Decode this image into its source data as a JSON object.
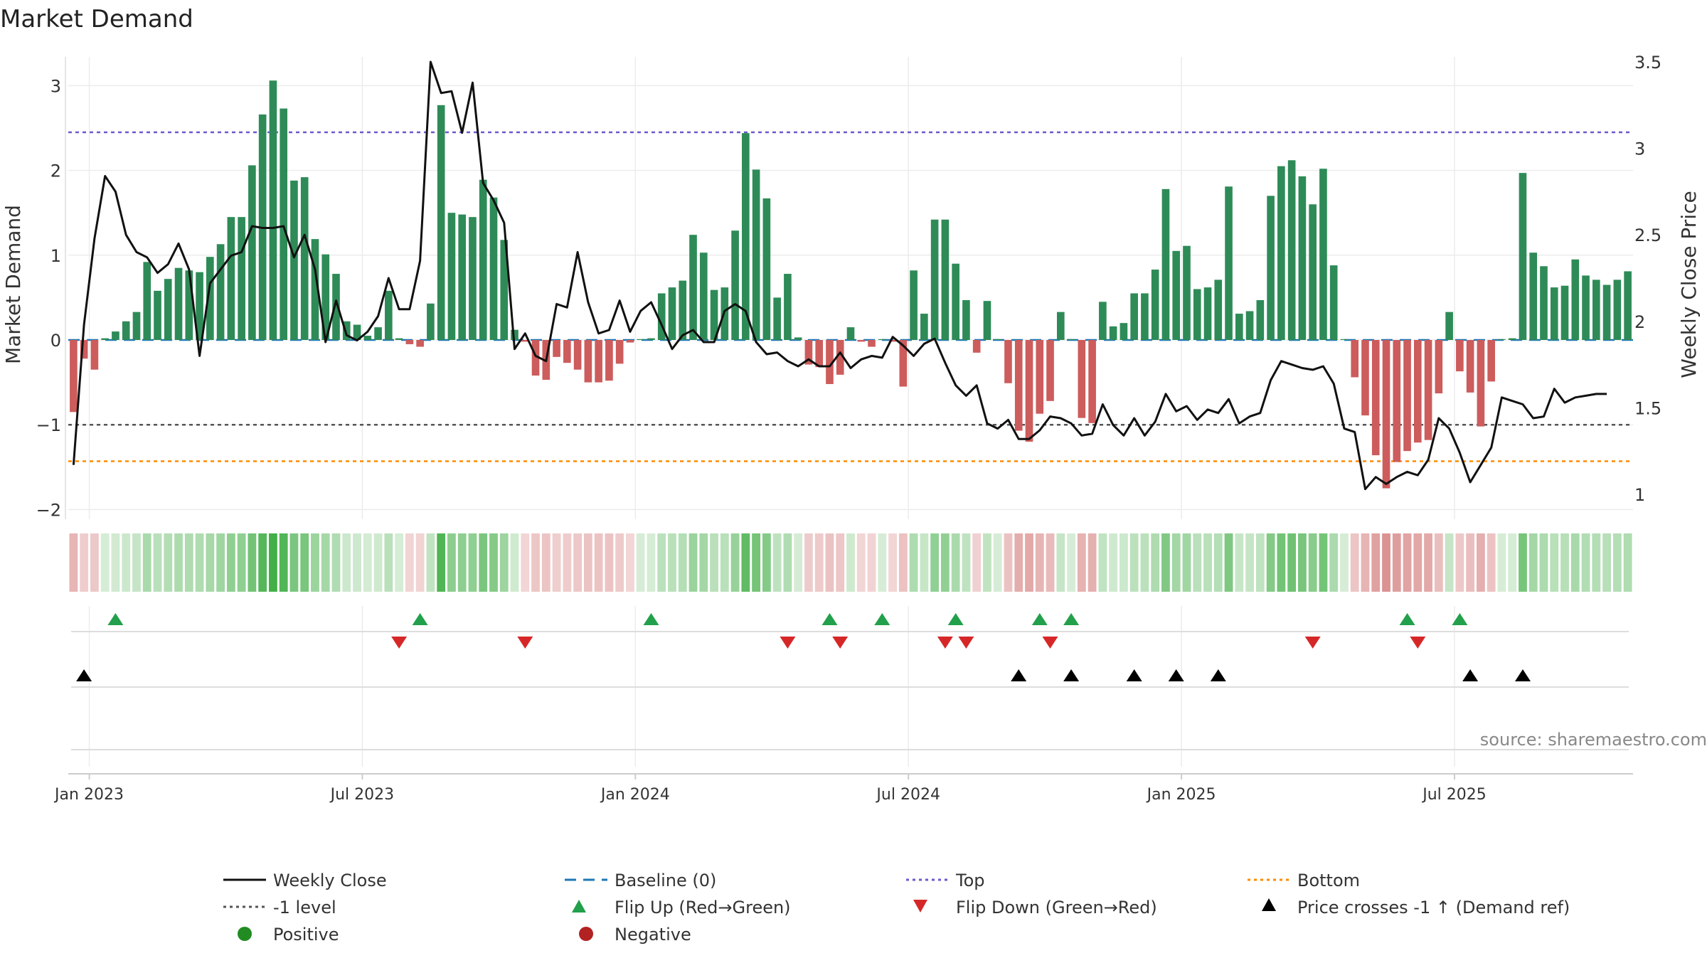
{
  "chart_data": {
    "type": "bar",
    "title": "Market Demand",
    "ylabel": "Market Demand",
    "y2label": "Weekly Close Price",
    "ylim": [
      -2.2,
      3.3
    ],
    "y2lim": [
      0.95,
      3.5
    ],
    "yticks": [
      "−2",
      "−1",
      "0",
      "1",
      "2",
      "3"
    ],
    "y2ticks": [
      "1",
      "1.5",
      "2",
      "2.5",
      "3",
      "3.5"
    ],
    "xticks": [
      "Jan 2023",
      "Jul 2023",
      "Jan 2024",
      "Jul 2024",
      "Jan 2025",
      "Jul 2025"
    ],
    "xtick_weeks": [
      2,
      28,
      54,
      80,
      106,
      132
    ],
    "source": "source: sharemaestro.com",
    "top_level": 2.45,
    "bottom_level": -1.43,
    "minus_one_level": -1,
    "colors": {
      "positive_bar": "#2e8b57",
      "negative_bar": "#cd5c5c",
      "price_line": "#111111",
      "baseline": "#1f77b4",
      "top": "#6a5acd",
      "bottom": "#ff8c00",
      "minus_one": "#555555",
      "flip_up": "#22a04b",
      "flip_down": "#d62728",
      "cross": "#000000",
      "positive_dot": "#228b22",
      "negative_dot": "#b22222"
    },
    "series": [
      {
        "name": "Market Demand",
        "values": [
          -0.85,
          -0.22,
          -0.35,
          0.02,
          0.1,
          0.22,
          0.33,
          0.92,
          0.58,
          0.72,
          0.85,
          0.82,
          0.8,
          0.98,
          1.13,
          1.45,
          1.45,
          2.06,
          2.66,
          3.06,
          2.73,
          1.88,
          1.92,
          1.19,
          1.01,
          0.78,
          0.22,
          0.18,
          0.05,
          0.15,
          0.58,
          0.02,
          -0.05,
          -0.08,
          0.43,
          2.77,
          1.5,
          1.48,
          1.45,
          1.89,
          1.68,
          1.18,
          0.12,
          -0.02,
          -0.42,
          -0.47,
          -0.2,
          -0.27,
          -0.35,
          -0.5,
          -0.5,
          -0.48,
          -0.28,
          -0.03,
          0.01,
          0.02,
          0.55,
          0.62,
          0.7,
          1.24,
          1.03,
          0.59,
          0.62,
          1.29,
          2.44,
          2.01,
          1.67,
          0.5,
          0.78,
          0.03,
          -0.29,
          -0.32,
          -0.52,
          -0.41,
          0.15,
          -0.02,
          -0.08,
          0.01,
          -0.02,
          -0.55,
          0.82,
          0.31,
          1.42,
          1.42,
          0.9,
          0.47,
          -0.15,
          0.46,
          0.01,
          -0.51,
          -1.07,
          -1.2,
          -0.87,
          -0.72,
          0.33,
          0.01,
          -0.92,
          -0.98,
          0.45,
          0.16,
          0.2,
          0.55,
          0.55,
          0.83,
          1.78,
          1.05,
          1.11,
          0.6,
          0.62,
          0.71,
          1.81,
          0.31,
          0.34,
          0.47,
          1.7,
          2.05,
          2.12,
          1.93,
          1.6,
          2.02,
          0.88,
          0.01,
          -0.44,
          -0.89,
          -1.36,
          -1.75,
          -1.44,
          -1.31,
          -1.21,
          -1.18,
          -0.63,
          0.33,
          -0.37,
          -0.62,
          -1.02,
          -0.49,
          0.01,
          0.02,
          1.97,
          1.03,
          0.87,
          0.62,
          0.64,
          0.95,
          0.76,
          0.71,
          0.65,
          0.71,
          0.81
        ]
      },
      {
        "name": "Weekly Close",
        "values": [
          1.17,
          1.98,
          2.48,
          2.84,
          2.75,
          2.5,
          2.4,
          2.37,
          2.28,
          2.33,
          2.45,
          2.3,
          1.8,
          2.22,
          2.3,
          2.38,
          2.4,
          2.55,
          2.54,
          2.54,
          2.55,
          2.37,
          2.5,
          2.3,
          1.88,
          2.12,
          1.92,
          1.89,
          1.94,
          2.03,
          2.25,
          2.07,
          2.07,
          2.35,
          3.5,
          3.32,
          3.33,
          3.09,
          3.38,
          2.8,
          2.7,
          2.57,
          1.84,
          1.93,
          1.8,
          1.77,
          2.1,
          2.08,
          2.4,
          2.11,
          1.93,
          1.95,
          2.12,
          1.94,
          2.06,
          2.11,
          1.98,
          1.84,
          1.92,
          1.95,
          1.88,
          1.88,
          2.06,
          2.1,
          2.06,
          1.88,
          1.81,
          1.82,
          1.77,
          1.74,
          1.78,
          1.74,
          1.74,
          1.82,
          1.73,
          1.78,
          1.8,
          1.79,
          1.91,
          1.86,
          1.8,
          1.87,
          1.9,
          1.76,
          1.63,
          1.57,
          1.63,
          1.41,
          1.38,
          1.43,
          1.32,
          1.32,
          1.37,
          1.45,
          1.44,
          1.41,
          1.34,
          1.35,
          1.52,
          1.4,
          1.34,
          1.44,
          1.34,
          1.42,
          1.58,
          1.48,
          1.51,
          1.43,
          1.49,
          1.47,
          1.55,
          1.41,
          1.45,
          1.47,
          1.66,
          1.77,
          1.75,
          1.73,
          1.72,
          1.74,
          1.64,
          1.38,
          1.36,
          1.03,
          1.1,
          1.06,
          1.1,
          1.13,
          1.11,
          1.2,
          1.44,
          1.38,
          1.24,
          1.07,
          1.17,
          1.27,
          1.56,
          1.54,
          1.52,
          1.44,
          1.45,
          1.61,
          1.53,
          1.56,
          1.57,
          1.58,
          1.58
        ]
      }
    ],
    "flip_up_weeks": [
      4,
      33,
      55,
      72,
      77,
      84,
      92,
      95,
      127,
      132
    ],
    "flip_down_weeks": [
      31,
      43,
      68,
      73,
      83,
      85,
      93,
      118,
      128
    ],
    "cross_weeks": [
      1,
      90,
      95,
      101,
      105,
      109,
      133,
      138
    ]
  },
  "legend": {
    "weekly_close": "Weekly Close",
    "baseline": "Baseline (0)",
    "top": "Top",
    "bottom": "Bottom",
    "minus_one": "-1 level",
    "flip_up": "Flip Up (Red→Green)",
    "flip_down": "Flip Down (Green→Red)",
    "price_cross": "Price crosses -1 ↑ (Demand ref)",
    "positive": "Positive",
    "negative": "Negative"
  }
}
